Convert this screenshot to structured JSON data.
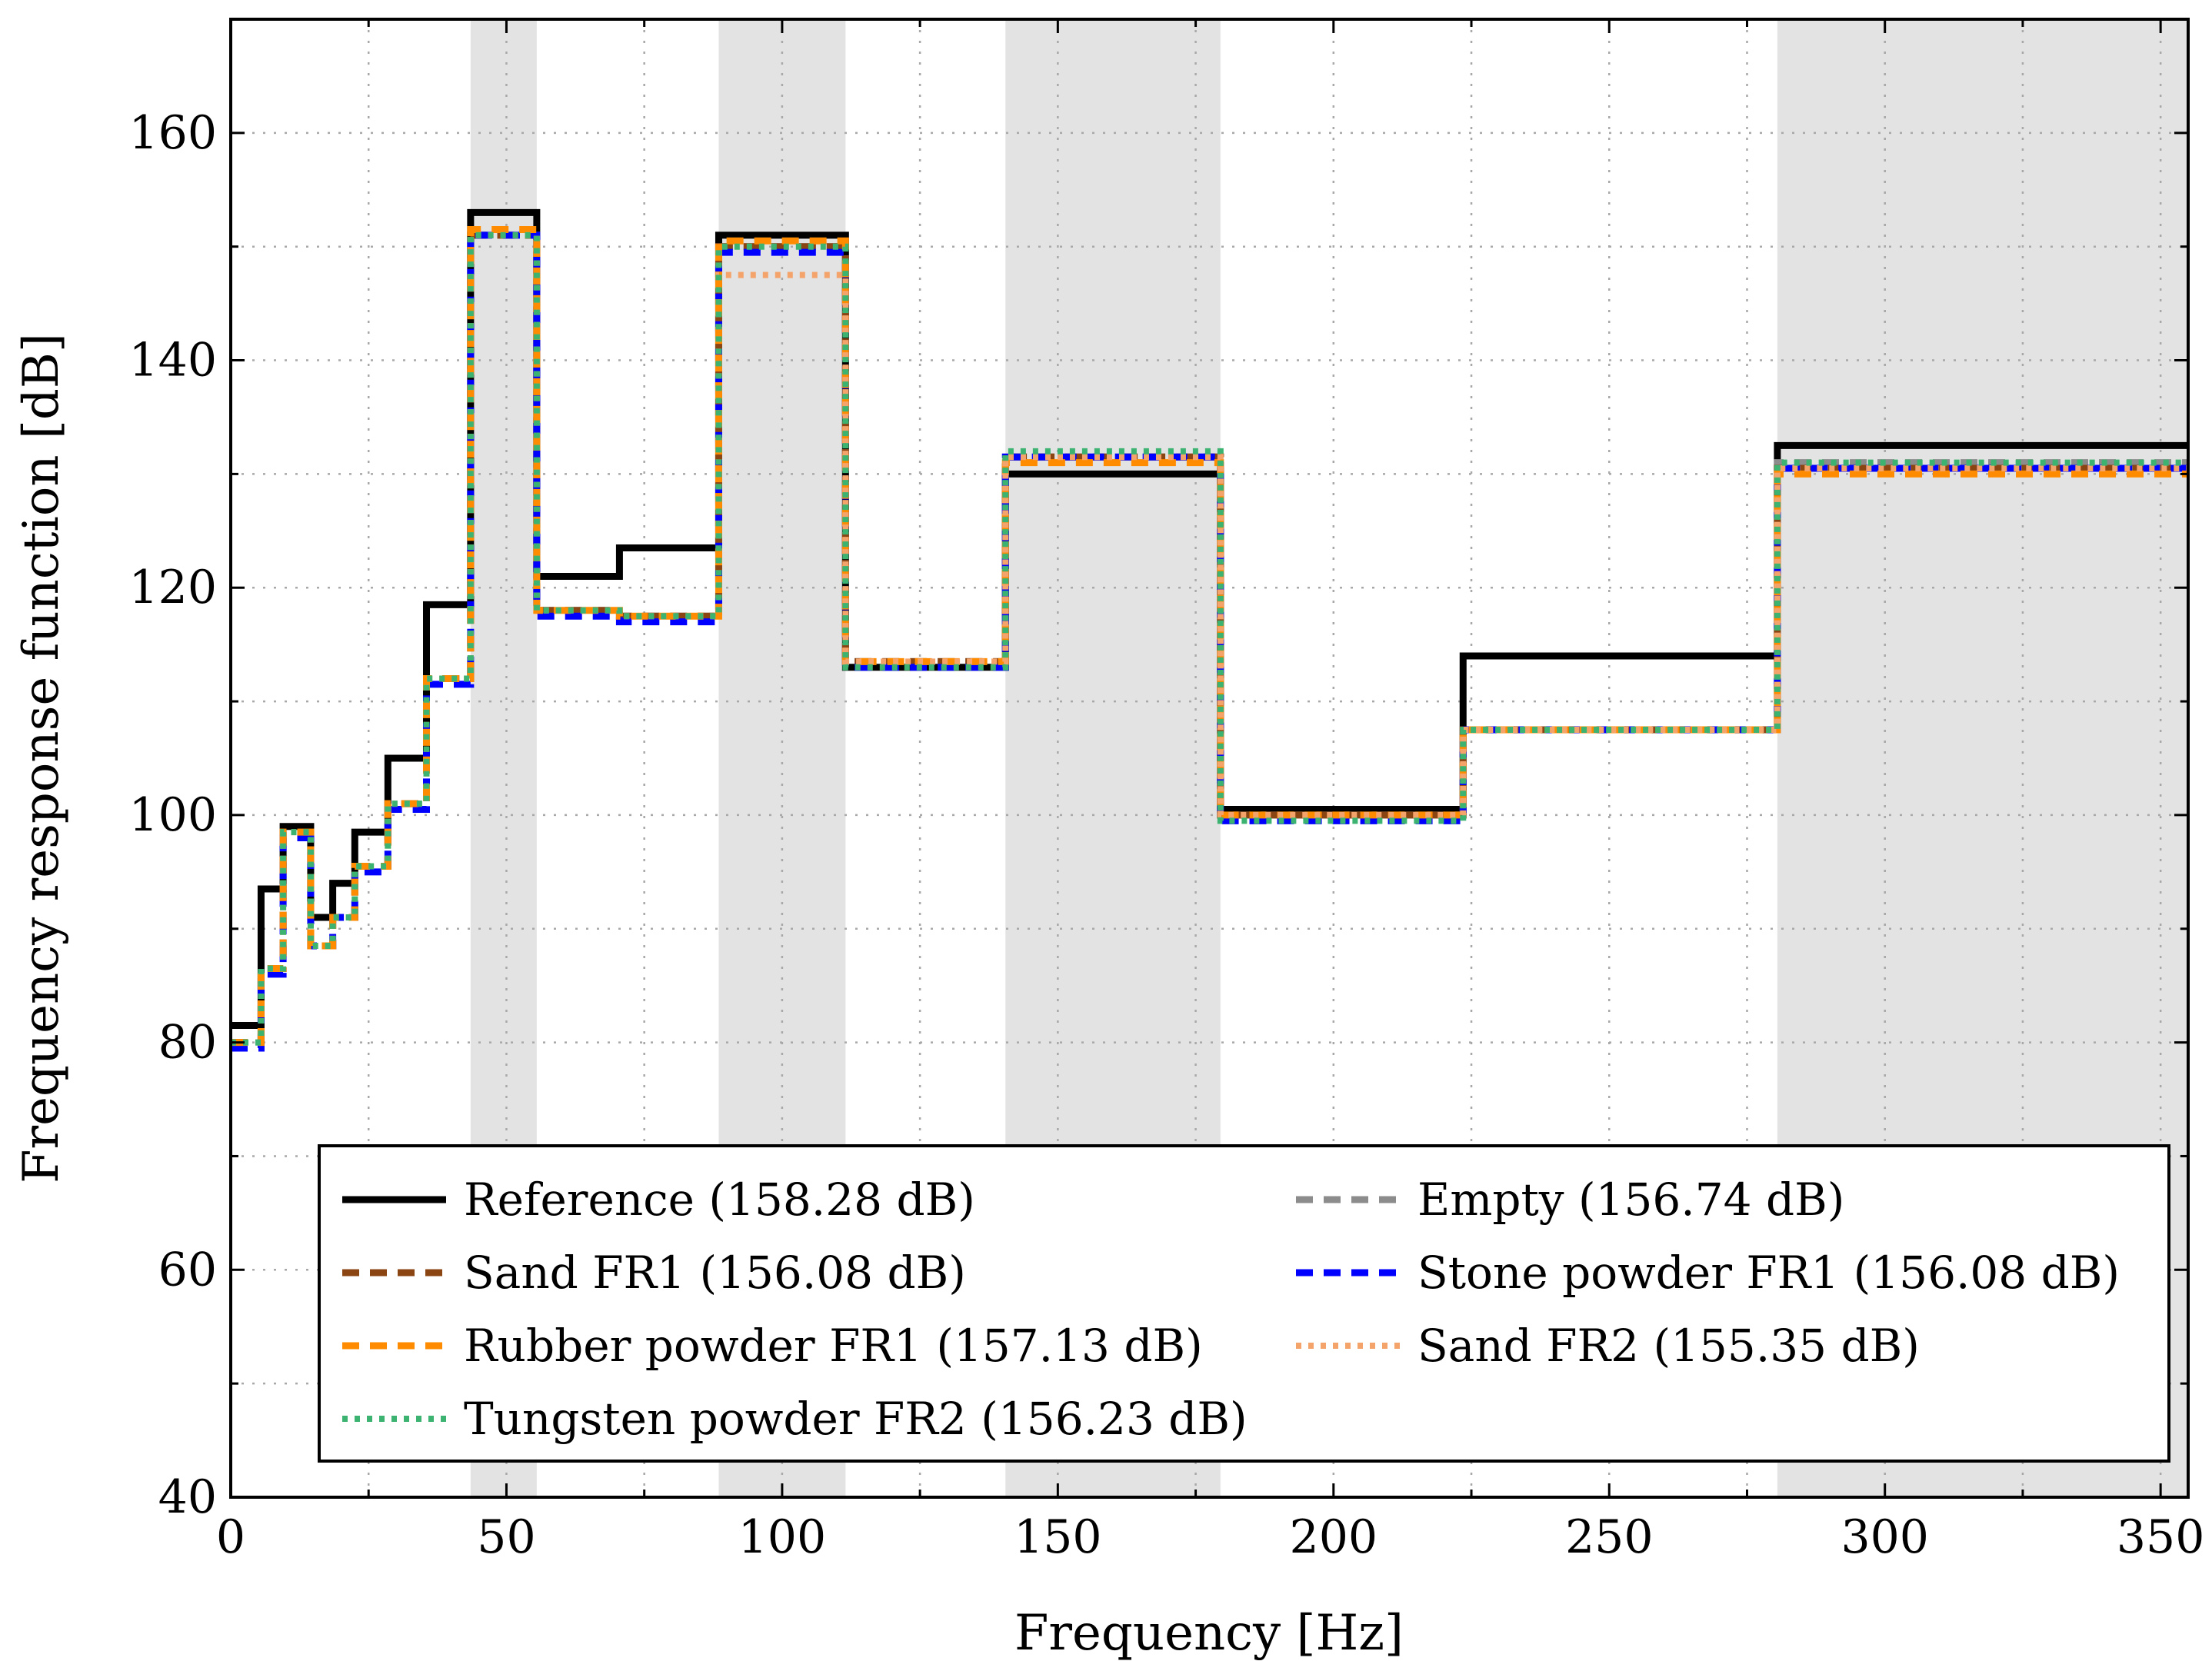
{
  "chart_data": {
    "type": "line",
    "step": true,
    "title": "",
    "xlabel": "Frequency [Hz]",
    "ylabel": "Frequency response function [dB]",
    "xlim": [
      0,
      355
    ],
    "ylim": [
      40,
      170
    ],
    "xticks": [
      0,
      50,
      100,
      150,
      200,
      250,
      300,
      350
    ],
    "yticks": [
      40,
      60,
      80,
      100,
      120,
      140,
      160
    ],
    "grid": true,
    "legend_position": "bottom-center",
    "shaded_bands": [
      [
        43.5,
        55.5
      ],
      [
        88.5,
        111.5
      ],
      [
        140.5,
        179.5
      ],
      [
        280.5,
        355
      ]
    ],
    "bands": [
      [
        0,
        5.5
      ],
      [
        5.5,
        9.5
      ],
      [
        9.5,
        14.5
      ],
      [
        14.5,
        18.5
      ],
      [
        18.5,
        22.5
      ],
      [
        22.5,
        28.5
      ],
      [
        28.5,
        35.5
      ],
      [
        35.5,
        43.5
      ],
      [
        43.5,
        55.5
      ],
      [
        55.5,
        70.5
      ],
      [
        70.5,
        88.5
      ],
      [
        88.5,
        111.5
      ],
      [
        111.5,
        140.5
      ],
      [
        140.5,
        179.5
      ],
      [
        179.5,
        223.5
      ],
      [
        223.5,
        280.5
      ],
      [
        280.5,
        355
      ]
    ],
    "series": [
      {
        "name": "Reference (158.28 dB)",
        "color": "#000000",
        "style": "solid",
        "values": [
          81.5,
          93.5,
          99.0,
          91.0,
          94.0,
          98.5,
          105.0,
          118.5,
          153.0,
          121.0,
          123.5,
          151.0,
          113.0,
          130.0,
          100.5,
          114.0,
          132.5
        ]
      },
      {
        "name": "Empty (156.74 dB)",
        "color": "#8c8c8c",
        "style": "dashed",
        "values": [
          80.0,
          86.5,
          98.5,
          88.5,
          91.0,
          95.5,
          101.0,
          112.0,
          151.0,
          118.0,
          117.5,
          150.0,
          113.5,
          131.5,
          100.0,
          107.5,
          131.0
        ]
      },
      {
        "name": "Sand FR1 (156.08 dB)",
        "color": "#8b4513",
        "style": "dashed",
        "values": [
          80.0,
          86.5,
          98.5,
          88.5,
          91.0,
          95.5,
          101.0,
          112.0,
          151.0,
          118.0,
          117.5,
          150.0,
          113.5,
          131.5,
          100.0,
          107.5,
          130.5
        ]
      },
      {
        "name": "Stone powder FR1 (156.08 dB)",
        "color": "#0000ff",
        "style": "dashed",
        "values": [
          79.5,
          86.0,
          98.0,
          88.5,
          91.0,
          95.0,
          100.5,
          111.5,
          151.0,
          117.5,
          117.0,
          149.5,
          113.0,
          131.5,
          99.5,
          107.5,
          130.5
        ]
      },
      {
        "name": "Rubber powder FR1 (157.13 dB)",
        "color": "#ff8c00",
        "style": "dashed",
        "values": [
          80.0,
          86.5,
          98.5,
          88.5,
          91.0,
          95.5,
          101.0,
          112.0,
          151.5,
          118.0,
          117.5,
          150.5,
          113.5,
          131.0,
          100.0,
          107.5,
          130.0
        ]
      },
      {
        "name": "Sand FR2 (155.35 dB)",
        "color": "#f4a46a",
        "style": "dotted",
        "values": [
          80.0,
          86.5,
          98.5,
          88.5,
          91.0,
          95.5,
          101.0,
          112.0,
          151.0,
          118.0,
          117.5,
          147.5,
          113.5,
          131.5,
          100.0,
          107.5,
          130.5
        ]
      },
      {
        "name": "Tungsten powder FR2 (156.23 dB)",
        "color": "#3cb371",
        "style": "dotted",
        "values": [
          80.0,
          86.5,
          98.5,
          88.5,
          91.0,
          95.5,
          101.0,
          112.0,
          151.0,
          118.0,
          117.5,
          150.0,
          113.0,
          132.0,
          99.5,
          107.5,
          131.0
        ]
      }
    ]
  }
}
